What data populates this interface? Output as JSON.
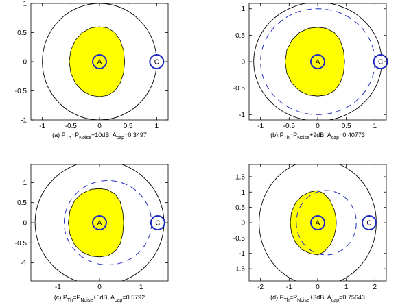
{
  "chart_data": [
    {
      "type": "scatter",
      "caption": {
        "prefix": "(a) P",
        "th": "Th",
        "eq": "=P",
        "noise": "Noise",
        "snr": "+10dB, A",
        "cap": "cap",
        "value": "=0.3497"
      },
      "xlim": [
        -1.2,
        1.2
      ],
      "ylim": [
        -1,
        1
      ],
      "xticks": [
        "-1",
        "-0.5",
        "0",
        "0.5",
        "1"
      ],
      "yticks": [
        "1",
        "0.5",
        "0",
        "-0.5",
        "-1"
      ],
      "xtick_values": [
        -1,
        -0.5,
        0,
        0.5,
        1
      ],
      "ytick_values": [
        1,
        0.5,
        0,
        -0.5,
        -1
      ],
      "outer_circle": {
        "cx": 0,
        "cy": 0,
        "r": 1
      },
      "dashed_circle": null,
      "capture_region": [
        [
          0.0,
          0.6
        ],
        [
          -0.15,
          0.58
        ],
        [
          -0.3,
          0.5
        ],
        [
          -0.42,
          0.37
        ],
        [
          -0.5,
          0.2
        ],
        [
          -0.53,
          0.0
        ],
        [
          -0.5,
          -0.2
        ],
        [
          -0.42,
          -0.37
        ],
        [
          -0.3,
          -0.5
        ],
        [
          -0.15,
          -0.58
        ],
        [
          0.0,
          -0.6
        ],
        [
          0.14,
          -0.58
        ],
        [
          0.27,
          -0.5
        ],
        [
          0.36,
          -0.37
        ],
        [
          0.42,
          -0.2
        ],
        [
          0.44,
          0.0
        ],
        [
          0.42,
          0.2
        ],
        [
          0.36,
          0.37
        ],
        [
          0.27,
          0.5
        ],
        [
          0.14,
          0.58
        ]
      ],
      "point_a": {
        "label": "A",
        "x": 0,
        "y": 0
      },
      "point_c": {
        "label": "C",
        "x": 1,
        "y": 0
      }
    },
    {
      "type": "scatter",
      "caption": {
        "prefix": "(b) P",
        "th": "Th",
        "eq": "=P",
        "noise": "Noise",
        "snr": "+9dB, A",
        "cap": "cap",
        "value": "=0.40773"
      },
      "xlim": [
        -1.2,
        1.2
      ],
      "ylim": [
        -1.1,
        1.1
      ],
      "xticks": [
        "-1",
        "-0.5",
        "0",
        "0.5",
        "1"
      ],
      "yticks": [
        "1",
        "0.5",
        "0",
        "-0.5",
        "-1"
      ],
      "xtick_values": [
        -1,
        -0.5,
        0,
        0.5,
        1
      ],
      "ytick_values": [
        1,
        0.5,
        0,
        -0.5,
        -1
      ],
      "outer_circle": {
        "cx": 0,
        "cy": 0,
        "r": 1.12
      },
      "dashed_circle": {
        "cx": 0,
        "cy": 0,
        "r": 1.0
      },
      "capture_region": [
        [
          0.0,
          0.65
        ],
        [
          -0.16,
          0.63
        ],
        [
          -0.32,
          0.55
        ],
        [
          -0.45,
          0.41
        ],
        [
          -0.54,
          0.22
        ],
        [
          -0.57,
          0.0
        ],
        [
          -0.54,
          -0.22
        ],
        [
          -0.45,
          -0.41
        ],
        [
          -0.32,
          -0.55
        ],
        [
          -0.16,
          -0.63
        ],
        [
          0.0,
          -0.65
        ],
        [
          0.15,
          -0.63
        ],
        [
          0.29,
          -0.55
        ],
        [
          0.39,
          -0.41
        ],
        [
          0.45,
          -0.22
        ],
        [
          0.47,
          0.0
        ],
        [
          0.45,
          0.22
        ],
        [
          0.39,
          0.41
        ],
        [
          0.29,
          0.55
        ],
        [
          0.15,
          0.63
        ]
      ],
      "point_a": {
        "label": "A",
        "x": 0,
        "y": 0
      },
      "point_c": {
        "label": "C",
        "x": 1.1,
        "y": 0
      }
    },
    {
      "type": "scatter",
      "caption": {
        "prefix": "(c) P",
        "th": "Th",
        "eq": "=P",
        "noise": "Noise",
        "snr": "+6dB, A",
        "cap": "cap",
        "value": "=0.5792"
      },
      "xlim": [
        -1.65,
        1.65
      ],
      "ylim": [
        -1.45,
        1.45
      ],
      "xticks": [
        "-1",
        "0",
        "1"
      ],
      "yticks": [
        "1",
        "0.5",
        "0",
        "-0.5",
        "-1"
      ],
      "xtick_values": [
        -1,
        0,
        1
      ],
      "ytick_values": [
        1,
        0.5,
        0,
        -0.5,
        -1
      ],
      "outer_circle": {
        "cx": 0,
        "cy": 0,
        "r": 1.55
      },
      "dashed_circle": {
        "cx": 0.2,
        "cy": 0,
        "r": 1.05
      },
      "capture_region": [
        [
          0.0,
          0.85
        ],
        [
          -0.2,
          0.83
        ],
        [
          -0.42,
          0.73
        ],
        [
          -0.6,
          0.55
        ],
        [
          -0.71,
          0.3
        ],
        [
          -0.75,
          0.0
        ],
        [
          -0.71,
          -0.3
        ],
        [
          -0.6,
          -0.55
        ],
        [
          -0.42,
          -0.73
        ],
        [
          -0.2,
          -0.83
        ],
        [
          0.0,
          -0.85
        ],
        [
          0.2,
          -0.82
        ],
        [
          0.38,
          -0.71
        ],
        [
          0.5,
          -0.52
        ],
        [
          0.56,
          -0.27
        ],
        [
          0.58,
          0.0
        ],
        [
          0.56,
          0.27
        ],
        [
          0.5,
          0.52
        ],
        [
          0.38,
          0.71
        ],
        [
          0.2,
          0.82
        ]
      ],
      "point_a": {
        "label": "A",
        "x": 0,
        "y": 0
      },
      "point_c": {
        "label": "C",
        "x": 1.4,
        "y": 0
      }
    },
    {
      "type": "scatter",
      "caption": {
        "prefix": "(d) P",
        "th": "Th",
        "eq": "=P",
        "noise": "Noise",
        "snr": "+3dB, A",
        "cap": "cap",
        "value": "=0.75643"
      },
      "xlim": [
        -2.4,
        2.4
      ],
      "ylim": [
        -1.9,
        1.9
      ],
      "xticks": [
        "-2",
        "-1",
        "0",
        "1",
        "2"
      ],
      "yticks": [
        "1.5",
        "1",
        "0.5",
        "0",
        "-0.5",
        "-1",
        "-1.5"
      ],
      "xtick_values": [
        -2,
        -1,
        0,
        1,
        2
      ],
      "ytick_values": [
        1.5,
        1,
        0.5,
        0,
        -0.5,
        -1,
        -1.5
      ],
      "outer_circle": {
        "cx": 0,
        "cy": 0,
        "r": 2.05
      },
      "dashed_circle": {
        "cx": 0.3,
        "cy": 0,
        "r": 1.05
      },
      "capture_region": [
        [
          0.0,
          1.05
        ],
        [
          -0.28,
          1.0
        ],
        [
          -0.56,
          0.87
        ],
        [
          -0.78,
          0.64
        ],
        [
          -0.92,
          0.34
        ],
        [
          -0.96,
          0.0
        ],
        [
          -0.92,
          -0.34
        ],
        [
          -0.78,
          -0.64
        ],
        [
          -0.56,
          -0.87
        ],
        [
          -0.28,
          -1.0
        ],
        [
          0.0,
          -1.05
        ],
        [
          0.22,
          -0.95
        ],
        [
          0.44,
          -0.72
        ],
        [
          0.58,
          -0.42
        ],
        [
          0.64,
          -0.15
        ],
        [
          0.65,
          0.0
        ],
        [
          0.64,
          0.15
        ],
        [
          0.58,
          0.42
        ],
        [
          0.44,
          0.72
        ],
        [
          0.22,
          0.95
        ]
      ],
      "point_a": {
        "label": "A",
        "x": 0,
        "y": 0
      },
      "point_c": {
        "label": "C",
        "x": 1.8,
        "y": 0
      }
    }
  ],
  "colors": {
    "fill": "#ffff00",
    "outline": "#000000",
    "marker": "#1f2bbf",
    "dashed": "#1f2bbf"
  }
}
